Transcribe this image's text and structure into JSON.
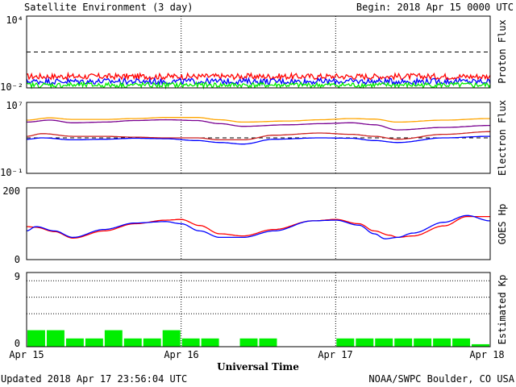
{
  "header": {
    "title": "Satellite Environment (3 day)",
    "begin": "Begin:  2018 Apr 15 0000 UTC"
  },
  "footer": {
    "updated": "Updated 2018 Apr 17 23:56:04 UTC",
    "source": "NOAA/SWPC Boulder, CO USA"
  },
  "xaxis": {
    "label": "Universal Time",
    "ticks": [
      "Apr 15",
      "Apr 16",
      "Apr 17",
      "Apr 18"
    ]
  },
  "colors": {
    "red": "#ff0000",
    "blue": "#0000ff",
    "green": "#00ee00",
    "orange": "#ffa500",
    "purple": "#7a0090",
    "darkred": "#cc2222"
  },
  "chart_data": [
    {
      "type": "line",
      "panel": "proton",
      "ylabel": "Proton Flux",
      "yscale": "log",
      "ylim": [
        0.01,
        10000
      ],
      "yticks": [
        "10⁴",
        "10⁻²"
      ],
      "threshold": 10,
      "x_days": [
        0,
        3
      ],
      "series": [
        {
          "color": "red",
          "level": 0.09,
          "jitter": 0.25
        },
        {
          "color": "blue",
          "level": 0.035,
          "jitter": 0.25
        },
        {
          "color": "green",
          "level": 0.017,
          "jitter": 0.22
        }
      ]
    },
    {
      "type": "line",
      "panel": "electron",
      "ylabel": "Electron Flux",
      "yscale": "log",
      "ylim": [
        0.1,
        10000000
      ],
      "yticks": [
        "10⁷",
        "10⁻¹"
      ],
      "threshold": 1000,
      "x_days": [
        0,
        3
      ],
      "series": [
        {
          "color": "orange",
          "x": [
            0,
            0.15,
            0.3,
            0.5,
            0.7,
            0.9,
            1.1,
            1.25,
            1.4,
            1.7,
            1.9,
            2.1,
            2.25,
            2.4,
            2.7,
            3.0
          ],
          "y": [
            100000,
            180000,
            120000,
            120000,
            150000,
            200000,
            200000,
            110000,
            60000,
            80000,
            110000,
            150000,
            130000,
            60000,
            100000,
            150000
          ]
        },
        {
          "color": "purple",
          "x": [
            0,
            0.15,
            0.3,
            0.5,
            0.7,
            0.9,
            1.1,
            1.25,
            1.4,
            1.7,
            1.9,
            2.1,
            2.25,
            2.4,
            2.7,
            3.0
          ],
          "y": [
            60000,
            100000,
            50000,
            60000,
            90000,
            110000,
            90000,
            40000,
            20000,
            30000,
            40000,
            50000,
            30000,
            8000,
            15000,
            25000
          ]
        },
        {
          "color": "darkred",
          "x": [
            0,
            0.1,
            0.3,
            0.5,
            0.7,
            0.9,
            1.1,
            1.25,
            1.4,
            1.6,
            1.9,
            2.1,
            2.25,
            2.4,
            2.7,
            3.0
          ],
          "y": [
            1500,
            3000,
            1500,
            1500,
            1200,
            1000,
            1000,
            600,
            600,
            2000,
            3500,
            2500,
            1500,
            700,
            2500,
            5000
          ]
        },
        {
          "color": "blue",
          "x": [
            0,
            0.1,
            0.3,
            0.5,
            0.7,
            0.9,
            1.1,
            1.25,
            1.4,
            1.6,
            1.9,
            2.1,
            2.25,
            2.4,
            2.7,
            3.0
          ],
          "y": [
            700,
            1000,
            600,
            700,
            900,
            800,
            500,
            300,
            200,
            700,
            1000,
            900,
            500,
            300,
            1000,
            1500
          ]
        }
      ]
    },
    {
      "type": "line",
      "panel": "goes_hp",
      "ylabel": "GOES Hp",
      "ylim": [
        0,
        200
      ],
      "yticks": [
        "200",
        "0"
      ],
      "x_days": [
        0,
        3
      ],
      "series": [
        {
          "color": "red",
          "x": [
            0,
            0.06,
            0.18,
            0.3,
            0.5,
            0.7,
            0.9,
            1.0,
            1.12,
            1.25,
            1.4,
            1.6,
            1.85,
            2.0,
            2.15,
            2.25,
            2.35,
            2.4,
            2.5,
            2.7,
            2.85,
            3.0
          ],
          "y": [
            92,
            90,
            78,
            60,
            80,
            100,
            110,
            112,
            95,
            72,
            66,
            84,
            108,
            112,
            100,
            80,
            68,
            62,
            66,
            94,
            120,
            120
          ]
        },
        {
          "color": "blue",
          "x": [
            0,
            0.06,
            0.18,
            0.3,
            0.5,
            0.7,
            0.9,
            1.0,
            1.12,
            1.25,
            1.4,
            1.6,
            1.85,
            2.0,
            2.15,
            2.25,
            2.32,
            2.4,
            2.5,
            2.7,
            2.85,
            3.0
          ],
          "y": [
            80,
            92,
            80,
            62,
            84,
            102,
            106,
            100,
            80,
            62,
            62,
            80,
            108,
            110,
            96,
            72,
            58,
            62,
            74,
            104,
            123,
            108
          ]
        }
      ]
    },
    {
      "type": "bar",
      "panel": "kp",
      "ylabel": "Estimated Kp",
      "ylim": [
        0,
        9
      ],
      "yticks": [
        "9",
        "0"
      ],
      "gridlines": [
        4,
        6,
        8
      ],
      "color": "green",
      "values": [
        2,
        2,
        1,
        1,
        2,
        1,
        1,
        2,
        1,
        1,
        0,
        1,
        1,
        0,
        0,
        0,
        1,
        1,
        1,
        1,
        1,
        1,
        1,
        0.3
      ]
    }
  ]
}
